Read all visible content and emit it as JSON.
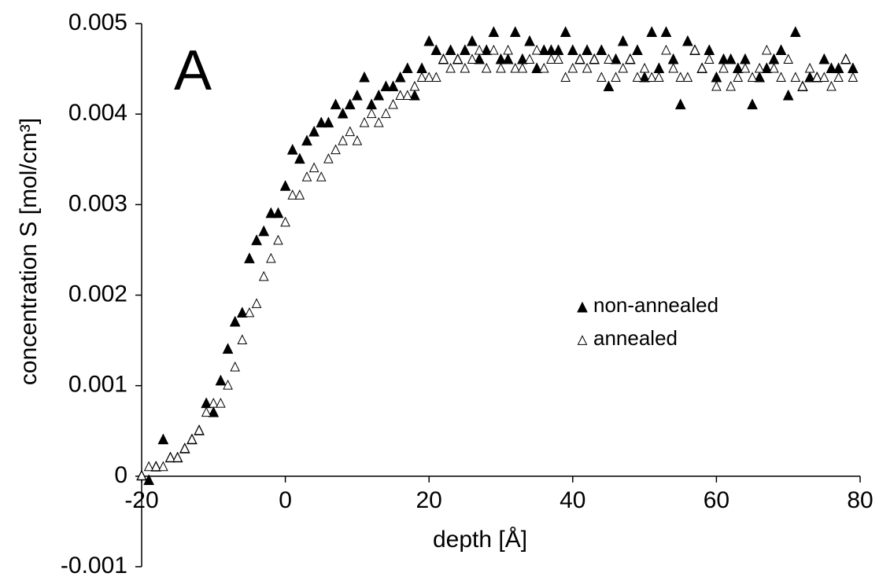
{
  "chart_data": {
    "type": "scatter",
    "title": "A",
    "xlabel": "depth [Å]",
    "ylabel": "concentration S  [mol/cm³]",
    "x": [
      -20,
      -19,
      -18,
      -17,
      -16,
      -15,
      -14,
      -13,
      -12,
      -11,
      -10,
      -9,
      -8,
      -7,
      -6,
      -5,
      -4,
      -3,
      -2,
      -1,
      0,
      1,
      2,
      3,
      4,
      5,
      6,
      7,
      8,
      9,
      10,
      11,
      12,
      13,
      14,
      15,
      16,
      17,
      18,
      19,
      20,
      21,
      22,
      23,
      24,
      25,
      26,
      27,
      28,
      29,
      30,
      31,
      32,
      33,
      34,
      35,
      36,
      37,
      38,
      39,
      40,
      41,
      42,
      43,
      44,
      45,
      46,
      47,
      48,
      49,
      50,
      51,
      52,
      53,
      54,
      55,
      56,
      57,
      58,
      59,
      60,
      61,
      62,
      63,
      64,
      65,
      66,
      67,
      68,
      69,
      70,
      71,
      72,
      73,
      74,
      75,
      76,
      77,
      78,
      79
    ],
    "series": [
      {
        "name": "non-annealed",
        "color": "#000000",
        "filled": true,
        "values": [
          0.0,
          -5e-05,
          0.0001,
          0.0004,
          0.0002,
          0.0002,
          0.0003,
          0.0004,
          0.0005,
          0.0008,
          0.0007,
          0.00105,
          0.0014,
          0.0017,
          0.0018,
          0.0024,
          0.0026,
          0.0027,
          0.0029,
          0.0029,
          0.0032,
          0.0036,
          0.0035,
          0.0037,
          0.0038,
          0.0039,
          0.0039,
          0.0041,
          0.004,
          0.0041,
          0.0042,
          0.0044,
          0.0041,
          0.0042,
          0.0043,
          0.0043,
          0.0044,
          0.0045,
          0.0042,
          0.0045,
          0.0048,
          0.0047,
          0.0046,
          0.0047,
          0.0046,
          0.0047,
          0.0048,
          0.0046,
          0.0047,
          0.0049,
          0.0046,
          0.0046,
          0.0049,
          0.0046,
          0.0048,
          0.0045,
          0.0047,
          0.0047,
          0.0047,
          0.0049,
          0.0047,
          0.0046,
          0.0047,
          0.0046,
          0.0047,
          0.0043,
          0.0046,
          0.0048,
          0.0046,
          0.0047,
          0.0044,
          0.0049,
          0.0045,
          0.0049,
          0.0046,
          0.0041,
          0.0048,
          0.0047,
          0.0045,
          0.0047,
          0.0044,
          0.0046,
          0.0046,
          0.0045,
          0.0046,
          0.0041,
          0.0044,
          0.0045,
          0.0046,
          0.0047,
          0.0042,
          0.0049,
          0.0043,
          0.0044,
          0.0044,
          0.0046,
          0.0045,
          0.0045,
          0.0046,
          0.0045
        ]
      },
      {
        "name": "annealed",
        "color": "#000000",
        "filled": false,
        "values": [
          0.0,
          0.0001,
          0.0001,
          0.0001,
          0.0002,
          0.0002,
          0.0003,
          0.0004,
          0.0005,
          0.0007,
          0.0008,
          0.0008,
          0.001,
          0.0012,
          0.0015,
          0.0018,
          0.0019,
          0.0022,
          0.0024,
          0.0026,
          0.0028,
          0.0031,
          0.0031,
          0.0033,
          0.0034,
          0.0033,
          0.0035,
          0.0036,
          0.0037,
          0.0038,
          0.0037,
          0.0039,
          0.004,
          0.0039,
          0.004,
          0.0041,
          0.0042,
          0.0042,
          0.0043,
          0.0044,
          0.0044,
          0.0044,
          0.0046,
          0.0045,
          0.0046,
          0.0045,
          0.0046,
          0.0047,
          0.0045,
          0.0047,
          0.0045,
          0.0047,
          0.0045,
          0.0045,
          0.0046,
          0.0047,
          0.0045,
          0.0046,
          0.0046,
          0.0044,
          0.0045,
          0.0046,
          0.0045,
          0.0046,
          0.0044,
          0.0046,
          0.0044,
          0.0045,
          0.0046,
          0.0044,
          0.0045,
          0.0044,
          0.0044,
          0.0047,
          0.0045,
          0.0044,
          0.0044,
          0.0047,
          0.0045,
          0.0046,
          0.0043,
          0.0045,
          0.0043,
          0.0044,
          0.0045,
          0.0044,
          0.0045,
          0.0047,
          0.0045,
          0.0044,
          0.0046,
          0.0044,
          0.0043,
          0.0045,
          0.0044,
          0.0044,
          0.0043,
          0.0044,
          0.0046,
          0.0044
        ]
      }
    ],
    "xlim": [
      -20,
      80
    ],
    "xticks": [
      -20,
      0,
      20,
      40,
      60,
      80
    ],
    "ylim": [
      -0.001,
      0.005
    ],
    "yticks": [
      -0.001,
      0,
      0.001,
      0.002,
      0.003,
      0.004,
      0.005
    ],
    "grid": false,
    "legend": "right"
  }
}
